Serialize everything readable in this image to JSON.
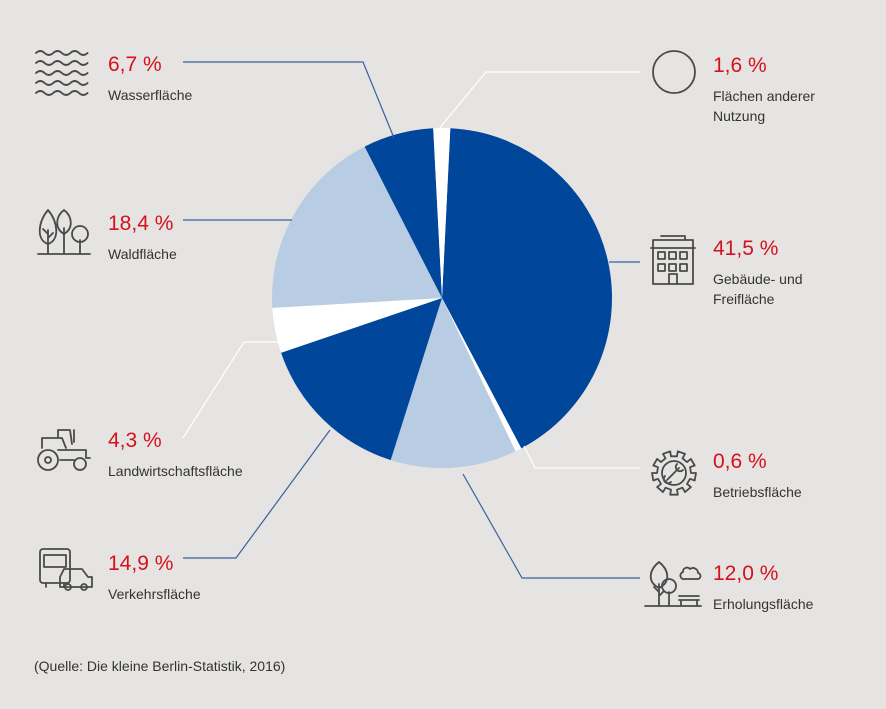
{
  "chart_data": {
    "type": "pie",
    "slices": [
      {
        "label": "Gebäude- und Freifläche",
        "lines": [
          "Gebäude- und",
          "Freifläche"
        ],
        "value_text": "41,5 %",
        "value": 41.5,
        "color": "#00479b",
        "icon": "building-icon"
      },
      {
        "label": "Betriebsfläche",
        "lines": [
          "Betriebsfläche"
        ],
        "value_text": "0,6 %",
        "value": 0.6,
        "color": "#ffffff",
        "icon": "gear-wrench-icon"
      },
      {
        "label": "Erholungsfläche",
        "lines": [
          "Erholungsfläche"
        ],
        "value_text": "12,0 %",
        "value": 12.0,
        "color": "#b8cce4",
        "icon": "park-icon"
      },
      {
        "label": "Verkehrsfläche",
        "lines": [
          "Verkehrsfläche"
        ],
        "value_text": "14,9 %",
        "value": 14.9,
        "color": "#00479b",
        "icon": "vehicles-icon"
      },
      {
        "label": "Landwirtschaftsfläche",
        "lines": [
          "Landwirtschaftsfläche"
        ],
        "value_text": "4,3 %",
        "value": 4.3,
        "color": "#ffffff",
        "icon": "tractor-icon"
      },
      {
        "label": "Waldfläche",
        "lines": [
          "Waldfläche"
        ],
        "value_text": "18,4 %",
        "value": 18.4,
        "color": "#b8cce4",
        "icon": "trees-icon"
      },
      {
        "label": "Wasserfläche",
        "lines": [
          "Wasserfläche"
        ],
        "value_text": "6,7 %",
        "value": 6.7,
        "color": "#00479b",
        "icon": "waves-icon"
      },
      {
        "label": "Flächen anderer Nutzung",
        "lines": [
          "Flächen anderer",
          "Nutzung"
        ],
        "value_text": "1,6 %",
        "value": 1.6,
        "color": "#ffffff",
        "icon": "circle-icon"
      }
    ]
  },
  "source": "(Quelle: Die kleine Berlin-Statistik, 2016)",
  "colors": {
    "dark_blue": "#00479b",
    "light_blue": "#b8cce4",
    "white": "#ffffff",
    "value_red": "#d4121e",
    "background": "#e6e4e2"
  }
}
